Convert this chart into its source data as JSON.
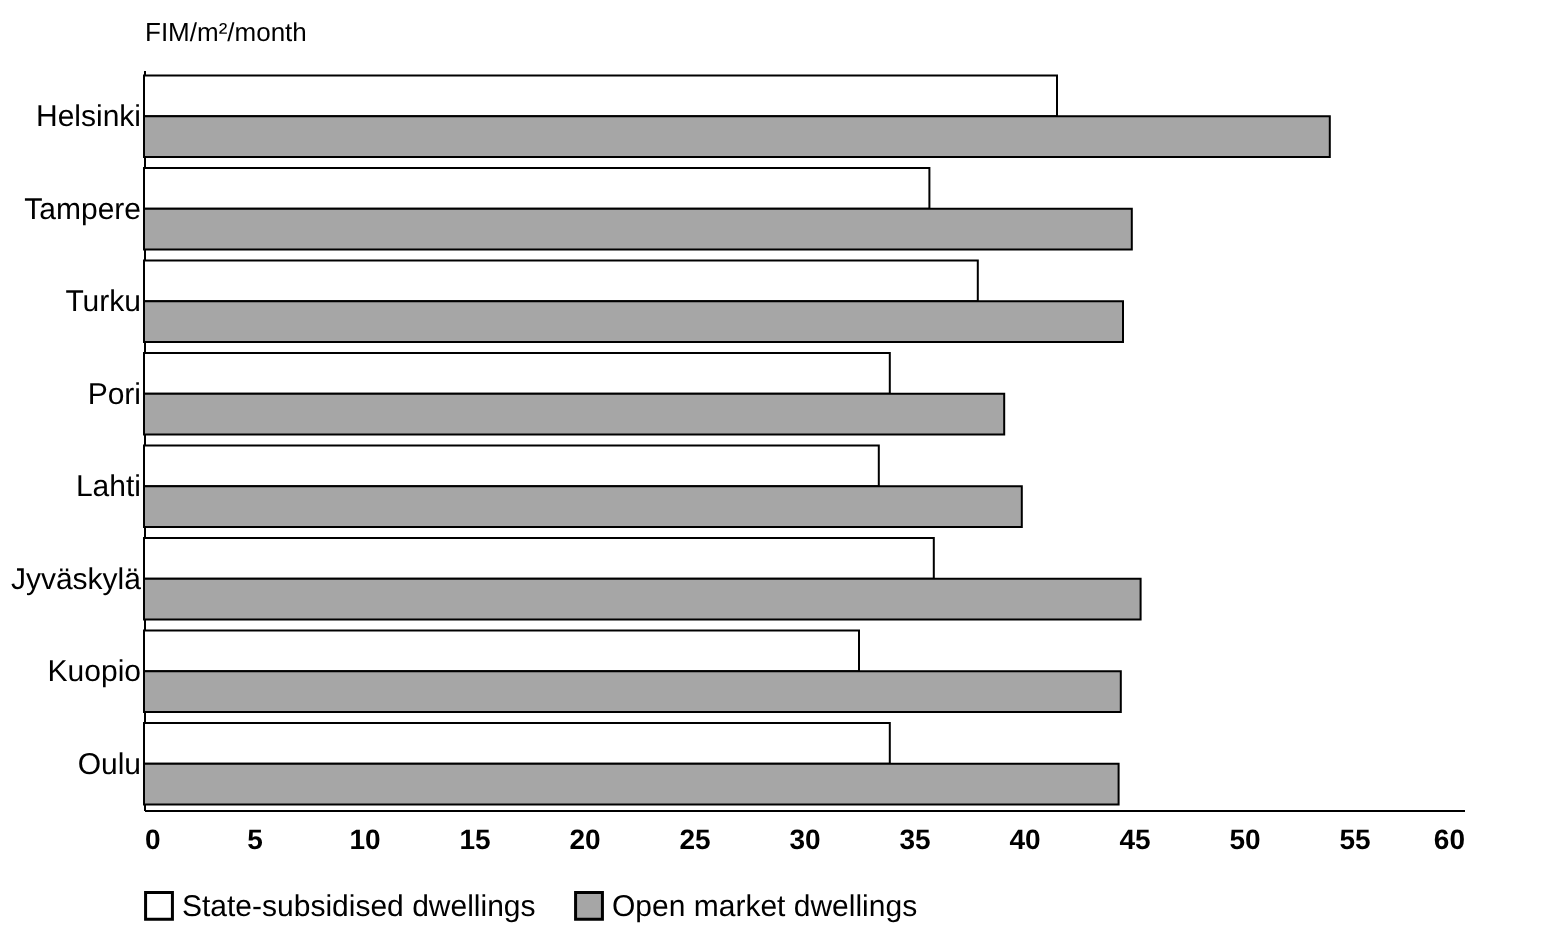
{
  "chart_data": {
    "type": "bar",
    "orientation": "horizontal",
    "ylabel": "FIM/m²/month",
    "categories": [
      "Helsinki",
      "Tampere",
      "Turku",
      "Pori",
      "Lahti",
      "Jyväskylä",
      "Kuopio",
      "Oulu"
    ],
    "series": [
      {
        "name": "State-subsidised dwellings",
        "color": "#ffffff",
        "values": [
          41.5,
          35.7,
          37.9,
          33.9,
          33.4,
          35.9,
          32.5,
          33.9
        ]
      },
      {
        "name": "Open market dwellings",
        "color": "#a6a6a6",
        "values": [
          53.9,
          44.9,
          44.5,
          39.1,
          39.9,
          45.3,
          44.4,
          44.3
        ]
      }
    ],
    "xlim": [
      0,
      60
    ],
    "xticks": [
      0,
      5,
      10,
      15,
      20,
      25,
      30,
      35,
      40,
      45,
      50,
      55,
      60
    ],
    "grid": false,
    "legend": "bottom"
  }
}
